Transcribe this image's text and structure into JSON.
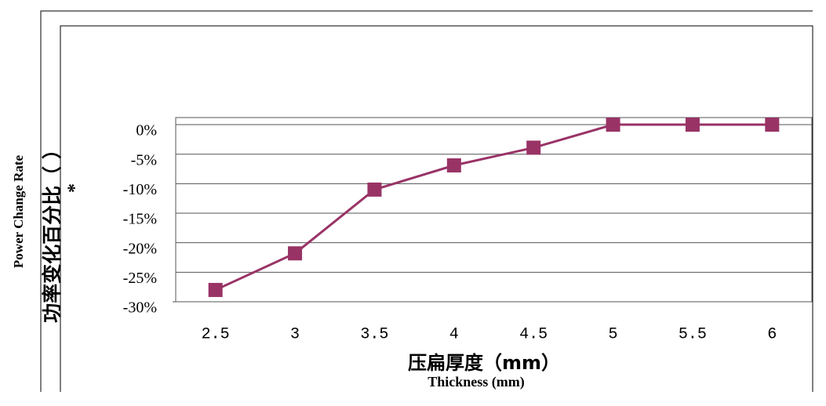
{
  "chart_data": {
    "type": "line",
    "y_title": "Power Change Rate",
    "y_title_cn": "功率变化百分比（ ）",
    "y_title_mark": "*",
    "x_title_cn": "压扁厚度（mm）",
    "x_title": "Thickness (mm)",
    "categories": [
      "2.5",
      "3",
      "3.5",
      "4",
      "4.5",
      "5",
      "5.5",
      "6"
    ],
    "series": [
      {
        "name": "Power Change Rate",
        "color": "#993366",
        "values": [
          -28,
          -21.8,
          -11,
          -6.9,
          -3.9,
          0,
          0,
          0
        ]
      }
    ],
    "ylim": [
      -30,
      1.2
    ],
    "yticks": [
      {
        "value": 0,
        "label": "0%"
      },
      {
        "value": -5,
        "label": "-5%"
      },
      {
        "value": -10,
        "label": "-10%"
      },
      {
        "value": -15,
        "label": "-15%"
      },
      {
        "value": -20,
        "label": "-20%"
      },
      {
        "value": -25,
        "label": "-25%"
      },
      {
        "value": -30,
        "label": "-30%"
      }
    ],
    "grid": true
  }
}
